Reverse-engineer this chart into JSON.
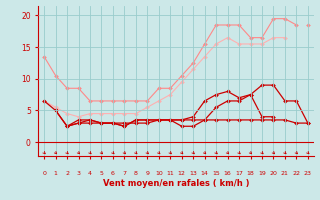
{
  "x": [
    0,
    1,
    2,
    3,
    4,
    5,
    6,
    7,
    8,
    9,
    10,
    11,
    12,
    13,
    14,
    15,
    16,
    17,
    18,
    19,
    20,
    21,
    22,
    23
  ],
  "series": [
    {
      "color": "#FF8888",
      "linewidth": 0.8,
      "marker": "D",
      "markersize": 2.0,
      "values": [
        13.5,
        10.5,
        8.5,
        8.5,
        6.5,
        6.5,
        6.5,
        6.5,
        6.5,
        6.5,
        8.5,
        8.5,
        10.5,
        12.5,
        15.5,
        18.5,
        18.5,
        18.5,
        16.5,
        16.5,
        19.5,
        19.5,
        18.5,
        null
      ]
    },
    {
      "color": "#FF8888",
      "linewidth": 0.8,
      "marker": "D",
      "markersize": 2.0,
      "values": [
        null,
        null,
        null,
        null,
        null,
        null,
        null,
        null,
        null,
        null,
        null,
        null,
        null,
        null,
        null,
        null,
        null,
        null,
        null,
        null,
        null,
        null,
        null,
        18.5
      ]
    },
    {
      "color": "#FFB0B0",
      "linewidth": 0.8,
      "marker": "D",
      "markersize": 2.0,
      "values": [
        6.5,
        5.5,
        4.5,
        4.0,
        4.5,
        4.5,
        4.5,
        4.5,
        4.5,
        5.5,
        6.5,
        7.5,
        9.5,
        11.5,
        13.5,
        15.5,
        16.5,
        15.5,
        15.5,
        15.5,
        16.5,
        16.5,
        null,
        null
      ]
    },
    {
      "color": "#cc0000",
      "linewidth": 0.9,
      "marker": "D",
      "markersize": 2.0,
      "values": [
        6.5,
        5.0,
        2.5,
        3.5,
        3.5,
        3.0,
        3.0,
        2.5,
        3.5,
        3.5,
        3.5,
        3.5,
        3.5,
        4.0,
        6.5,
        7.5,
        8.0,
        7.0,
        7.5,
        9.0,
        9.0,
        6.5,
        6.5,
        3.0
      ]
    },
    {
      "color": "#cc0000",
      "linewidth": 0.9,
      "marker": "D",
      "markersize": 2.0,
      "values": [
        null,
        5.0,
        2.5,
        3.0,
        3.5,
        3.0,
        3.0,
        2.5,
        3.5,
        3.5,
        3.5,
        3.5,
        2.5,
        2.5,
        3.5,
        5.5,
        6.5,
        6.5,
        7.5,
        4.0,
        4.0,
        null,
        null,
        null
      ]
    },
    {
      "color": "#cc0000",
      "linewidth": 0.9,
      "marker": "D",
      "markersize": 2.0,
      "values": [
        null,
        null,
        2.5,
        3.0,
        3.0,
        3.0,
        3.0,
        3.0,
        3.0,
        3.0,
        3.5,
        3.5,
        3.5,
        3.5,
        3.5,
        3.5,
        3.5,
        3.5,
        3.5,
        3.5,
        3.5,
        3.5,
        3.0,
        3.0
      ]
    }
  ],
  "xlabel": "Vent moyen/en rafales ( km/h )",
  "xlim": [
    -0.5,
    23.5
  ],
  "ylim": [
    -2.2,
    21.5
  ],
  "yticks": [
    0,
    5,
    10,
    15,
    20
  ],
  "xticks": [
    0,
    1,
    2,
    3,
    4,
    5,
    6,
    7,
    8,
    9,
    10,
    11,
    12,
    13,
    14,
    15,
    16,
    17,
    18,
    19,
    20,
    21,
    22,
    23
  ],
  "bg_color": "#cce8e8",
  "grid_color": "#99cccc",
  "tick_color": "#cc0000",
  "label_color": "#cc0000"
}
